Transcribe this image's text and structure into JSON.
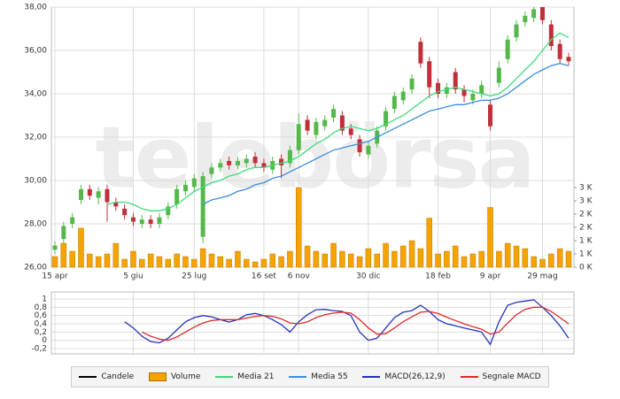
{
  "chart_data": [
    {
      "type": "candlestick",
      "watermark": "telebörsa",
      "categories": [
        "15 apr",
        null,
        null,
        null,
        null,
        null,
        null,
        null,
        null,
        "5 giu",
        null,
        null,
        null,
        null,
        null,
        null,
        "25 lug",
        null,
        null,
        null,
        null,
        null,
        null,
        null,
        "16 set",
        null,
        null,
        null,
        "6 nov",
        null,
        null,
        null,
        null,
        null,
        null,
        null,
        "30 dic",
        null,
        null,
        null,
        null,
        null,
        null,
        null,
        "18 feb",
        null,
        null,
        null,
        null,
        null,
        "9 apr",
        null,
        null,
        null,
        null,
        null,
        "29 mag",
        null,
        null,
        null
      ],
      "up_color": "#55b84a",
      "down_color": "#c0303a",
      "series": [
        {
          "name": "Candele",
          "color": "#000000",
          "open": [
            26.8,
            27.3,
            28.0,
            29.1,
            29.6,
            29.2,
            29.6,
            29.0,
            28.7,
            28.3,
            28.0,
            28.2,
            28.0,
            28.4,
            28.9,
            29.5,
            29.7,
            27.4,
            30.3,
            30.6,
            30.9,
            30.7,
            30.8,
            31.1,
            30.8,
            30.5,
            31.0,
            30.8,
            31.4,
            32.8,
            32.1,
            32.5,
            32.9,
            33.0,
            32.4,
            31.9,
            31.2,
            31.7,
            32.5,
            33.3,
            33.7,
            34.2,
            36.4,
            35.5,
            34.5,
            34.0,
            35.0,
            34.2,
            33.7,
            34.0,
            33.5,
            34.5,
            35.6,
            36.6,
            37.3,
            37.5,
            38.0,
            37.2,
            36.3,
            35.7
          ],
          "high": [
            27.2,
            28.1,
            28.5,
            29.8,
            29.8,
            29.7,
            29.8,
            29.2,
            28.9,
            28.5,
            28.4,
            28.4,
            28.5,
            29.0,
            29.8,
            30.0,
            30.3,
            30.4,
            30.8,
            31.0,
            31.1,
            31.1,
            31.2,
            31.3,
            31.0,
            31.1,
            31.2,
            31.6,
            33.1,
            33.0,
            32.9,
            33.0,
            33.5,
            33.2,
            32.6,
            32.1,
            31.8,
            32.5,
            33.4,
            34.1,
            34.3,
            34.9,
            36.6,
            35.7,
            34.7,
            34.5,
            35.2,
            34.4,
            34.2,
            34.6,
            33.7,
            35.5,
            36.7,
            37.4,
            37.8,
            38.0,
            38.0,
            37.4,
            36.5,
            35.9
          ],
          "low": [
            26.6,
            27.1,
            27.8,
            28.9,
            29.1,
            28.9,
            28.1,
            28.6,
            28.2,
            27.9,
            27.8,
            27.8,
            27.8,
            28.2,
            28.7,
            29.3,
            29.5,
            27.1,
            30.1,
            30.4,
            30.5,
            30.5,
            30.6,
            30.6,
            30.4,
            30.3,
            30.1,
            30.6,
            31.2,
            32.1,
            31.9,
            32.3,
            32.7,
            32.1,
            31.9,
            31.1,
            31.0,
            31.5,
            32.3,
            33.1,
            33.5,
            34.0,
            35.2,
            33.8,
            33.8,
            33.8,
            34.0,
            33.6,
            33.5,
            33.8,
            32.3,
            34.3,
            35.4,
            36.4,
            37.1,
            37.3,
            37.2,
            36.0,
            35.4,
            35.3
          ],
          "close": [
            27.0,
            27.9,
            28.3,
            29.6,
            29.3,
            29.5,
            29.0,
            28.8,
            28.4,
            28.1,
            28.2,
            28.0,
            28.3,
            28.8,
            29.6,
            29.8,
            30.1,
            30.2,
            30.6,
            30.8,
            30.7,
            30.9,
            31.0,
            30.8,
            30.6,
            30.9,
            30.7,
            31.4,
            32.6,
            32.3,
            32.7,
            32.8,
            33.3,
            32.3,
            32.1,
            31.3,
            31.6,
            32.3,
            33.2,
            33.9,
            34.1,
            34.7,
            35.4,
            34.3,
            34.0,
            34.3,
            34.2,
            33.9,
            34.0,
            34.4,
            32.5,
            35.2,
            36.5,
            37.2,
            37.6,
            37.9,
            37.4,
            36.2,
            35.6,
            35.5
          ]
        },
        {
          "name": "Volume",
          "color": "#f5a300",
          "axis": "y2",
          "values": [
            400,
            900,
            600,
            1470,
            500,
            400,
            500,
            900,
            300,
            600,
            300,
            500,
            400,
            300,
            500,
            400,
            300,
            700,
            500,
            400,
            300,
            600,
            300,
            200,
            300,
            500,
            400,
            600,
            3000,
            800,
            600,
            500,
            900,
            600,
            500,
            400,
            700,
            500,
            900,
            600,
            800,
            1000,
            700,
            1850,
            500,
            600,
            800,
            400,
            500,
            600,
            2250,
            600,
            900,
            800,
            700,
            400,
            300,
            500,
            700,
            600
          ]
        },
        {
          "name": "Media 21",
          "color": "#3ddc7a",
          "values": [
            null,
            null,
            null,
            null,
            null,
            null,
            28.9,
            29.0,
            29.0,
            28.9,
            28.7,
            28.6,
            28.6,
            28.7,
            28.9,
            29.2,
            29.5,
            29.7,
            29.9,
            30.0,
            30.2,
            30.3,
            30.5,
            30.6,
            30.6,
            30.7,
            30.8,
            30.9,
            31.1,
            31.4,
            31.7,
            31.9,
            32.2,
            32.4,
            32.5,
            32.4,
            32.3,
            32.4,
            32.6,
            32.8,
            33.0,
            33.3,
            33.6,
            33.9,
            34.1,
            34.2,
            34.3,
            34.2,
            34.1,
            34.0,
            33.9,
            34.0,
            34.3,
            34.7,
            35.1,
            35.5,
            36.0,
            36.5,
            36.8,
            36.6
          ]
        },
        {
          "name": "Media 55",
          "color": "#3a8ede",
          "values": [
            null,
            null,
            null,
            null,
            null,
            null,
            null,
            null,
            null,
            null,
            null,
            null,
            null,
            null,
            null,
            null,
            null,
            28.9,
            29.1,
            29.2,
            29.3,
            29.5,
            29.6,
            29.8,
            29.9,
            30.1,
            30.2,
            30.4,
            30.6,
            30.8,
            31.0,
            31.2,
            31.4,
            31.5,
            31.6,
            31.7,
            31.8,
            32.0,
            32.2,
            32.4,
            32.6,
            32.8,
            33.0,
            33.2,
            33.3,
            33.4,
            33.5,
            33.5,
            33.6,
            33.7,
            33.7,
            33.8,
            34.0,
            34.3,
            34.6,
            34.9,
            35.1,
            35.3,
            35.4,
            35.3
          ]
        }
      ],
      "ylim": [
        26,
        38
      ],
      "yticks": [
        {
          "value": 26,
          "label": "26,00"
        },
        {
          "value": 28,
          "label": "28,00"
        },
        {
          "value": 30,
          "label": "30,00"
        },
        {
          "value": 32,
          "label": "32,00"
        },
        {
          "value": 34,
          "label": "34,00"
        },
        {
          "value": 36,
          "label": "36,00"
        },
        {
          "value": 38,
          "label": "38,00"
        }
      ],
      "y2lim": [
        0,
        3000
      ],
      "y2ticks": [
        {
          "value": 0,
          "label": "0 K"
        },
        {
          "value": 500,
          "label": "1 K"
        },
        {
          "value": 1000,
          "label": "1 K"
        },
        {
          "value": 1500,
          "label": "2 K"
        },
        {
          "value": 2000,
          "label": "2 K"
        },
        {
          "value": 2500,
          "label": "3 K"
        },
        {
          "value": 3000,
          "label": "3 K"
        }
      ],
      "grid": true
    },
    {
      "type": "line",
      "series": [
        {
          "name": "MACD(26,12,9)",
          "color": "#2233bb",
          "values": [
            null,
            null,
            null,
            null,
            null,
            null,
            null,
            null,
            0.45,
            0.3,
            0.1,
            -0.03,
            -0.06,
            0.05,
            0.25,
            0.45,
            0.55,
            0.6,
            0.57,
            0.5,
            0.44,
            0.5,
            0.62,
            0.65,
            0.6,
            0.5,
            0.38,
            0.2,
            0.45,
            0.62,
            0.74,
            0.75,
            0.72,
            0.7,
            0.6,
            0.2,
            0.0,
            0.05,
            0.3,
            0.55,
            0.68,
            0.72,
            0.85,
            0.7,
            0.5,
            0.4,
            0.35,
            0.3,
            0.25,
            0.2,
            -0.1,
            0.45,
            0.85,
            0.92,
            0.95,
            0.98,
            0.8,
            0.6,
            0.35,
            0.05
          ]
        },
        {
          "name": "Segnale MACD",
          "color": "#dd2a2a",
          "values": [
            null,
            null,
            null,
            null,
            null,
            null,
            null,
            null,
            null,
            null,
            0.2,
            0.1,
            0.03,
            0.0,
            0.08,
            0.2,
            0.32,
            0.42,
            0.48,
            0.5,
            0.5,
            0.5,
            0.54,
            0.58,
            0.6,
            0.58,
            0.52,
            0.42,
            0.4,
            0.45,
            0.55,
            0.62,
            0.66,
            0.68,
            0.66,
            0.5,
            0.3,
            0.15,
            0.16,
            0.3,
            0.45,
            0.57,
            0.68,
            0.7,
            0.65,
            0.56,
            0.48,
            0.4,
            0.33,
            0.27,
            0.15,
            0.2,
            0.42,
            0.62,
            0.75,
            0.8,
            0.8,
            0.7,
            0.55,
            0.4
          ]
        }
      ],
      "ylim": [
        -0.2,
        1
      ],
      "yticks": [
        {
          "value": -0.2,
          "label": "-0,2"
        },
        0,
        {
          "value": 0.2,
          "label": "0,2"
        },
        {
          "value": 0.4,
          "label": "0,4"
        },
        {
          "value": 0.6,
          "label": "0,6"
        },
        {
          "value": 0.8,
          "label": "0,8"
        },
        1
      ],
      "grid": true
    }
  ]
}
